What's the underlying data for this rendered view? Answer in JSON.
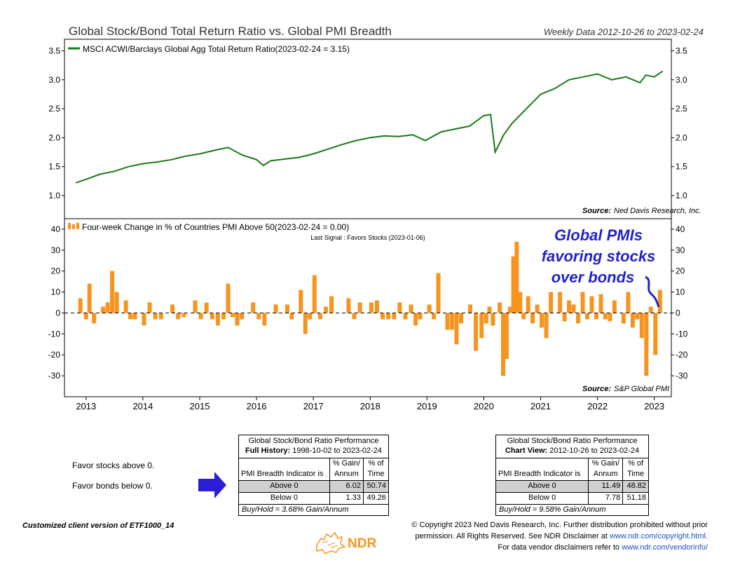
{
  "header": {
    "title": "Global Stock/Bond Total Return Ratio vs. Global PMI Breadth",
    "data_range": "Weekly Data 2012-10-26 to 2023-02-24"
  },
  "top_panel": {
    "legend": "MSCI ACWI/Barclays Global Agg Total Return Ratio(2023-02-24 = 3.15)",
    "source_label": "Source:",
    "source_name": "Ned Davis Research, Inc.",
    "line_color": "#1a7a1a"
  },
  "bottom_panel": {
    "legend": "Four-week Change in % of Countries PMI Above 50(2023-02-24 = 0.00)",
    "last_signal": "Last Signal : Favors Stocks (2023-01-06)",
    "source_label": "Source:",
    "source_name": "S&P Global PMI",
    "bar_color": "#f7941d"
  },
  "annotation": {
    "line1": "Global PMIs",
    "line2": "favoring stocks",
    "line3": "over bonds",
    "color": "#2222cc"
  },
  "chart_data": [
    {
      "type": "line",
      "ylim": [
        0.6,
        3.7
      ],
      "yticks": [
        "3.5",
        "3.0",
        "2.5",
        "2.0",
        "1.5",
        "1.0"
      ],
      "x": [
        2012.82,
        2013.0,
        2013.25,
        2013.5,
        2013.75,
        2014.0,
        2014.25,
        2014.5,
        2014.75,
        2015.0,
        2015.25,
        2015.5,
        2015.75,
        2016.0,
        2016.12,
        2016.25,
        2016.5,
        2016.75,
        2017.0,
        2017.25,
        2017.5,
        2017.75,
        2018.0,
        2018.25,
        2018.5,
        2018.75,
        2018.97,
        2019.25,
        2019.5,
        2019.75,
        2020.0,
        2020.12,
        2020.2,
        2020.35,
        2020.5,
        2020.75,
        2021.0,
        2021.25,
        2021.5,
        2021.75,
        2022.0,
        2022.25,
        2022.5,
        2022.75,
        2022.85,
        2023.0,
        2023.15
      ],
      "values": [
        1.22,
        1.28,
        1.37,
        1.42,
        1.5,
        1.55,
        1.58,
        1.62,
        1.68,
        1.72,
        1.78,
        1.83,
        1.7,
        1.62,
        1.52,
        1.6,
        1.63,
        1.66,
        1.72,
        1.8,
        1.88,
        1.95,
        2.0,
        2.03,
        2.02,
        2.05,
        1.95,
        2.1,
        2.15,
        2.2,
        2.38,
        2.4,
        1.75,
        2.05,
        2.25,
        2.5,
        2.75,
        2.85,
        3.0,
        3.05,
        3.1,
        3.0,
        3.05,
        2.95,
        3.08,
        3.05,
        3.15
      ],
      "legend": "MSCI ACWI/Barclays Global Agg Total Return Ratio(2023-02-24 = 3.15)"
    },
    {
      "type": "bar",
      "ylim": [
        -40,
        45
      ],
      "yticks": [
        "40",
        "30",
        "20",
        "10",
        "0",
        "-10",
        "-20",
        "-30"
      ],
      "xticks": [
        "2013",
        "2014",
        "2015",
        "2016",
        "2017",
        "2018",
        "2019",
        "2020",
        "2021",
        "2022",
        "2023"
      ],
      "x": [
        2012.9,
        2013.0,
        2013.06,
        2013.14,
        2013.22,
        2013.3,
        2013.38,
        2013.46,
        2013.54,
        2013.62,
        2013.7,
        2013.78,
        2013.86,
        2013.94,
        2014.02,
        2014.12,
        2014.22,
        2014.32,
        2014.42,
        2014.52,
        2014.62,
        2014.72,
        2014.82,
        2014.92,
        2015.02,
        2015.12,
        2015.22,
        2015.32,
        2015.42,
        2015.5,
        2015.58,
        2015.66,
        2015.74,
        2015.84,
        2015.94,
        2016.04,
        2016.14,
        2016.24,
        2016.34,
        2016.44,
        2016.54,
        2016.62,
        2016.7,
        2016.78,
        2016.86,
        2016.94,
        2017.02,
        2017.12,
        2017.22,
        2017.32,
        2017.42,
        2017.52,
        2017.62,
        2017.72,
        2017.82,
        2017.92,
        2018.02,
        2018.12,
        2018.22,
        2018.32,
        2018.42,
        2018.52,
        2018.62,
        2018.72,
        2018.8,
        2018.88,
        2018.96,
        2019.04,
        2019.12,
        2019.2,
        2019.28,
        2019.36,
        2019.44,
        2019.52,
        2019.6,
        2019.68,
        2019.76,
        2019.86,
        2019.96,
        2020.04,
        2020.1,
        2020.16,
        2020.22,
        2020.28,
        2020.34,
        2020.4,
        2020.46,
        2020.52,
        2020.58,
        2020.64,
        2020.7,
        2020.78,
        2020.86,
        2020.94,
        2021.02,
        2021.1,
        2021.18,
        2021.26,
        2021.34,
        2021.42,
        2021.5,
        2021.58,
        2021.66,
        2021.74,
        2021.82,
        2021.9,
        2021.98,
        2022.06,
        2022.14,
        2022.22,
        2022.3,
        2022.38,
        2022.46,
        2022.54,
        2022.62,
        2022.7,
        2022.78,
        2022.86,
        2022.94,
        2023.02,
        2023.1
      ],
      "values": [
        7,
        -3,
        14,
        -5,
        0,
        3,
        5,
        20,
        10,
        0,
        6,
        -3,
        -3,
        0,
        -6,
        5,
        -3,
        -3,
        0,
        4,
        -3,
        -2,
        0,
        6,
        -3,
        5,
        -3,
        -6,
        -3,
        14,
        -2,
        -6,
        -3,
        0,
        5,
        -3,
        -6,
        0,
        4,
        0,
        4,
        -3,
        0,
        11,
        -10,
        -3,
        18,
        -3,
        3,
        8,
        0,
        0,
        7,
        -3,
        5,
        0,
        5,
        6,
        -3,
        -3,
        -3,
        5,
        -3,
        4,
        -6,
        -3,
        0,
        4,
        -3,
        19,
        0,
        -8,
        -8,
        -15,
        -5,
        0,
        4,
        -18,
        -12,
        -5,
        3,
        -6,
        0,
        5,
        -30,
        -22,
        3,
        27,
        34,
        10,
        -3,
        8,
        -5,
        4,
        -7,
        -12,
        10,
        0,
        10,
        -4,
        6,
        4,
        -5,
        10,
        -3,
        8,
        -3,
        9,
        -3,
        -4,
        6,
        0,
        -5,
        10,
        -7,
        -3,
        -12,
        -30,
        3,
        -20,
        11
      ],
      "threshold": 0,
      "legend": "Four-week Change in % of Countries PMI Above 50(2023-02-24 = 0.00)"
    }
  ],
  "side_notes": {
    "favor_stocks": "Favor stocks above 0.",
    "favor_bonds": "Favor bonds below 0."
  },
  "table_full": {
    "title": "Global Stock/Bond Ratio Performance",
    "subtitle_bold": "Full History:",
    "subtitle_range": "1998-10-02 to 2023-02-24",
    "col1_head": "PMI Breadth Indicator is",
    "col2_head_a": "% Gain/",
    "col2_head_b": "Annum",
    "col3_head_a": "% of",
    "col3_head_b": "Time",
    "rows": [
      {
        "label": "Above 0",
        "gain": "6.02",
        "time": "50.74"
      },
      {
        "label": "Below 0",
        "gain": "1.33",
        "time": "49.26"
      }
    ],
    "footer": "Buy/Hold = 3.68% Gain/Annum"
  },
  "table_view": {
    "title": "Global Stock/Bond Ratio Performance",
    "subtitle_bold": "Chart View:",
    "subtitle_range": "2012-10-26 to 2023-02-24",
    "col1_head": "PMI Breadth Indicator is",
    "col2_head_a": "% Gain/",
    "col2_head_b": "Annum",
    "col3_head_a": "% of",
    "col3_head_b": "Time",
    "rows": [
      {
        "label": "Above 0",
        "gain": "11.49",
        "time": "48.82"
      },
      {
        "label": "Below 0",
        "gain": "7.78",
        "time": "51.18"
      }
    ],
    "footer": "Buy/Hold = 9.58% Gain/Annum"
  },
  "footer": {
    "client_version": "Customized client version of ETF1000_14",
    "logo_text": "NDR",
    "copyright_1": "© Copyright 2023 Ned Davis Research, Inc. Further distribution prohibited without prior",
    "copyright_2a": "permission. All Rights Reserved. See NDR Disclaimer at",
    "copyright_2_link": "www.ndr.com/copyright.html.",
    "copyright_3a": "For data vendor disclaimers refer to",
    "copyright_3_link": "www.ndr.com/vendorinfo/"
  },
  "arrow_color": "#2a1fd6"
}
